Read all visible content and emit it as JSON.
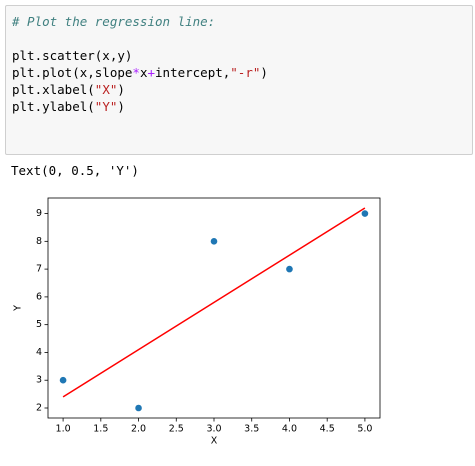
{
  "code": {
    "comment": "# Plot the regression line:",
    "lines": [
      [
        "plt.scatter(x,y)"
      ],
      [
        "plt.plot(x,slope",
        "*",
        "x",
        "+",
        "intercept,",
        "\"-r\"",
        ")"
      ],
      [
        "plt.xlabel(",
        "\"X\"",
        ")"
      ],
      [
        "plt.ylabel(",
        "\"Y\"",
        ")"
      ]
    ]
  },
  "output": {
    "text": "Text(0, 0.5, 'Y')"
  },
  "chart_data": {
    "type": "scatter",
    "xlabel": "X",
    "ylabel": "Y",
    "x": [
      1,
      2,
      3,
      4,
      5
    ],
    "values": [
      3,
      2,
      8,
      7,
      9
    ],
    "color": "#1f77b4",
    "regression_line": {
      "x": [
        1,
        5
      ],
      "values": [
        2.4,
        9.2
      ],
      "color": "#ff0000"
    },
    "xlim": [
      0.8,
      5.2
    ],
    "ylim": [
      1.64,
      9.56
    ],
    "xticks": [
      {
        "value": 1,
        "label": "1.0"
      },
      {
        "value": 1.5,
        "label": "1.5"
      },
      {
        "value": 2,
        "label": "2.0"
      },
      {
        "value": 2.5,
        "label": "2.5"
      },
      {
        "value": 3,
        "label": "3.0"
      },
      {
        "value": 3.5,
        "label": "3.5"
      },
      {
        "value": 4,
        "label": "4.0"
      },
      {
        "value": 4.5,
        "label": "4.5"
      },
      {
        "value": 5,
        "label": "5.0"
      }
    ],
    "yticks": [
      2,
      3,
      4,
      5,
      6,
      7,
      8,
      9
    ]
  }
}
